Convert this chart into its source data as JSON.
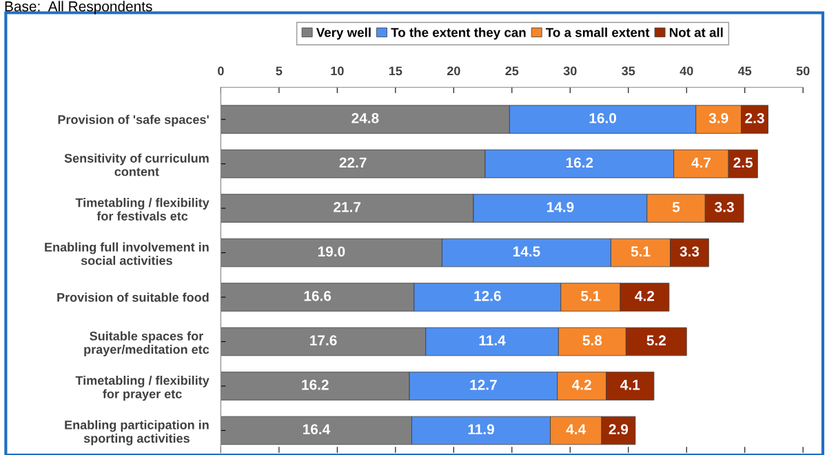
{
  "chart_data": {
    "type": "bar",
    "orientation": "horizontal",
    "stacked": true,
    "annotations": [
      "Base:  All Respondents"
    ],
    "categories": [
      "Provision of 'safe spaces'",
      "Sensitivity of curriculum content",
      "Timetabling / flexibility for festivals etc",
      "Enabling full involvement in social activities",
      "Provision of suitable food",
      "Suitable spaces for prayer/meditation etc",
      "Timetabling / flexibility for prayer etc",
      "Enabling participation in sporting activities"
    ],
    "series": [
      {
        "name": "Very well",
        "color": "#808080",
        "values": [
          24.8,
          22.7,
          21.7,
          19.0,
          16.6,
          17.6,
          16.2,
          16.4
        ],
        "value_labels": [
          "24.8",
          "22.7",
          "21.7",
          "19.0",
          "16.6",
          "17.6",
          "16.2",
          "16.4"
        ]
      },
      {
        "name": "To the extent they can",
        "color": "#4f8ff0",
        "values": [
          16.0,
          16.2,
          14.9,
          14.5,
          12.6,
          11.4,
          12.7,
          11.9
        ],
        "value_labels": [
          "16.0",
          "16.2",
          "14.9",
          "14.5",
          "12.6",
          "11.4",
          "12.7",
          "11.9"
        ]
      },
      {
        "name": "To a small extent",
        "color": "#f5862b",
        "values": [
          3.9,
          4.7,
          5,
          5.1,
          5.1,
          5.8,
          4.2,
          4.4
        ],
        "value_labels": [
          "3.9",
          "4.7",
          "5",
          "5.1",
          "5.1",
          "5.8",
          "4.2",
          "4.4"
        ]
      },
      {
        "name": "Not at all",
        "color": "#9a2a00",
        "values": [
          2.3,
          2.5,
          3.3,
          3.3,
          4.2,
          5.2,
          4.1,
          2.9
        ],
        "value_labels": [
          "2.3",
          "2.5",
          "3.3",
          "3.3",
          "4.2",
          "5.2",
          "4.1",
          "2.9"
        ]
      }
    ],
    "xlim": [
      0,
      50
    ],
    "xticks": [
      0,
      5,
      10,
      15,
      20,
      25,
      30,
      35,
      40,
      45,
      50
    ],
    "grid": false,
    "legend": "top"
  }
}
